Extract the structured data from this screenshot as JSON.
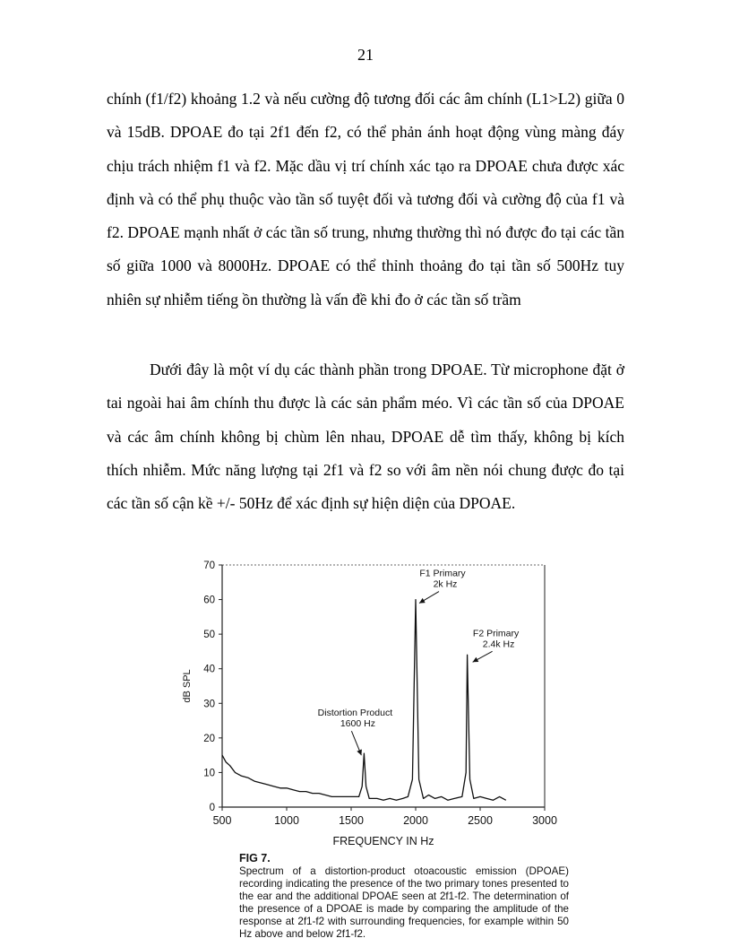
{
  "page_number": "21",
  "paragraphs": [
    "chính (f1/f2) khoảng 1.2 và nếu cường độ tương đối các âm chính (L1>L2) giữa 0 và 15dB. DPOAE đo tại 2f1 đến f2, có thể phản ánh hoạt động vùng màng đáy chịu trách nhiệm f1 và f2. Mặc dầu vị trí chính xác tạo ra DPOAE chưa được xác định và có thể phụ thuộc vào tần số tuyệt đối và tương đối và cường độ của f1 và f2. DPOAE mạnh nhất ở các tần số trung, nhưng thường thì nó được đo tại các tần số giữa 1000 và 8000Hz. DPOAE có thể thỉnh thoảng đo tại tần số 500Hz tuy nhiên sự nhiễm tiếng ồn thường là vấn đề khi đo ở các tần số trầm",
    "Dưới đây là một ví dụ các thành phần trong DPOAE. Từ microphone đặt ở tai ngoài hai âm chính thu được là các sản phẩm méo. Vì các tần số của DPOAE và các âm chính không bị chùm lên nhau, DPOAE dễ tìm thấy, không bị kích thích nhiễm. Mức năng lượng tại 2f1 và f2 so với âm nền nói chung được đo tại các tần số cận kề +/- 50Hz để xác định sự hiện diện của DPOAE."
  ],
  "figure": {
    "label": "FIG 7.",
    "caption": "Spectrum of a distortion-product otoacoustic emission (DPOAE) recording indicating the presence of the two primary tones presented to the ear and the additional DPOAE seen at 2f1-f2. The determination of the presence of a DPOAE is made by comparing the amplitude of the response at 2f1-f2 with surrounding frequencies, for example within 50 Hz above and below 2f1-f2."
  },
  "chart_data": {
    "type": "line",
    "xlabel": "FREQUENCY IN Hz",
    "ylabel": "dB SPL",
    "xlim": [
      500,
      3000
    ],
    "ylim": [
      0,
      70
    ],
    "x_ticks": [
      500,
      1000,
      1500,
      2000,
      2500,
      3000
    ],
    "y_ticks": [
      0,
      10,
      20,
      30,
      40,
      50,
      60,
      70
    ],
    "grid": false,
    "series": [
      {
        "points": [
          [
            500,
            15
          ],
          [
            530,
            13
          ],
          [
            560,
            12
          ],
          [
            600,
            10
          ],
          [
            650,
            9
          ],
          [
            700,
            8.5
          ],
          [
            750,
            7.5
          ],
          [
            800,
            7
          ],
          [
            850,
            6.5
          ],
          [
            900,
            6
          ],
          [
            950,
            5.5
          ],
          [
            1000,
            5.5
          ],
          [
            1050,
            5
          ],
          [
            1100,
            4.5
          ],
          [
            1150,
            4.5
          ],
          [
            1200,
            4
          ],
          [
            1250,
            4
          ],
          [
            1300,
            3.5
          ],
          [
            1350,
            3
          ],
          [
            1400,
            3
          ],
          [
            1450,
            3
          ],
          [
            1500,
            3
          ],
          [
            1560,
            3
          ],
          [
            1585,
            6
          ],
          [
            1600,
            15.5
          ],
          [
            1615,
            6
          ],
          [
            1640,
            2.5
          ],
          [
            1700,
            2.5
          ],
          [
            1750,
            2
          ],
          [
            1800,
            2.5
          ],
          [
            1850,
            2
          ],
          [
            1900,
            2.5
          ],
          [
            1940,
            3
          ],
          [
            1975,
            8
          ],
          [
            2000,
            60
          ],
          [
            2025,
            8
          ],
          [
            2060,
            2.5
          ],
          [
            2100,
            3.5
          ],
          [
            2150,
            2.5
          ],
          [
            2200,
            3
          ],
          [
            2250,
            2
          ],
          [
            2300,
            2.5
          ],
          [
            2360,
            3
          ],
          [
            2390,
            10
          ],
          [
            2400,
            44
          ],
          [
            2420,
            8
          ],
          [
            2450,
            2.5
          ],
          [
            2500,
            3
          ],
          [
            2550,
            2.5
          ],
          [
            2600,
            2
          ],
          [
            2650,
            3
          ],
          [
            2700,
            2
          ]
        ]
      }
    ],
    "annotations": [
      {
        "lines": [
          "F1 Primary",
          "2k Hz"
        ],
        "x": 2000,
        "y": 60
      },
      {
        "lines": [
          "F2 Primary",
          "2.4k Hz"
        ],
        "x": 2400,
        "y": 44
      },
      {
        "lines": [
          "Distortion Product",
          "1600 Hz"
        ],
        "x": 1600,
        "y": 15.5
      }
    ]
  }
}
